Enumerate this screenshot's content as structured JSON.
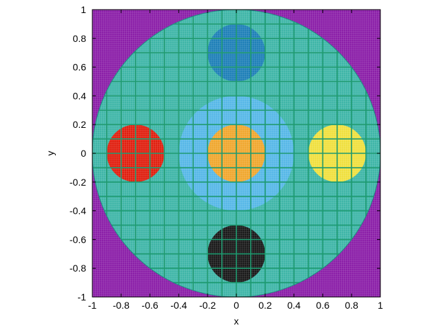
{
  "chart_data": {
    "type": "scatter",
    "description_free": true,
    "xlabel": "x",
    "ylabel": "y",
    "xlim": [
      -1,
      1
    ],
    "ylim": [
      -1,
      1
    ],
    "xticks": [
      "-1",
      "-0.8",
      "-0.6",
      "-0.4",
      "-0.2",
      "0",
      "0.2",
      "0.4",
      "0.6",
      "0.8",
      "1"
    ],
    "yticks": [
      "-1",
      "-0.8",
      "-0.6",
      "-0.4",
      "-0.2",
      "0",
      "0.2",
      "0.4",
      "0.6",
      "0.8",
      "1"
    ],
    "grid": false,
    "background_color": "#8b1fa8",
    "regions": [
      {
        "shape": "circle",
        "cx": 0,
        "cy": 0,
        "r": 1.0,
        "color": "#3fb6a8"
      },
      {
        "shape": "circle",
        "cx": 0,
        "cy": 0,
        "r": 0.4,
        "color": "#57b8e8"
      },
      {
        "shape": "circle",
        "cx": 0,
        "cy": 0,
        "r": 0.2,
        "color": "#f0a830"
      },
      {
        "shape": "circle",
        "cx": 0,
        "cy": 0.7,
        "r": 0.2,
        "color": "#1f80b8"
      },
      {
        "shape": "circle",
        "cx": 0,
        "cy": -0.7,
        "r": 0.2,
        "color": "#1a1a1a"
      },
      {
        "shape": "circle",
        "cx": -0.7,
        "cy": 0,
        "r": 0.2,
        "color": "#e02010"
      },
      {
        "shape": "circle",
        "cx": 0.7,
        "cy": 0,
        "r": 0.2,
        "color": "#f0e040"
      }
    ]
  }
}
